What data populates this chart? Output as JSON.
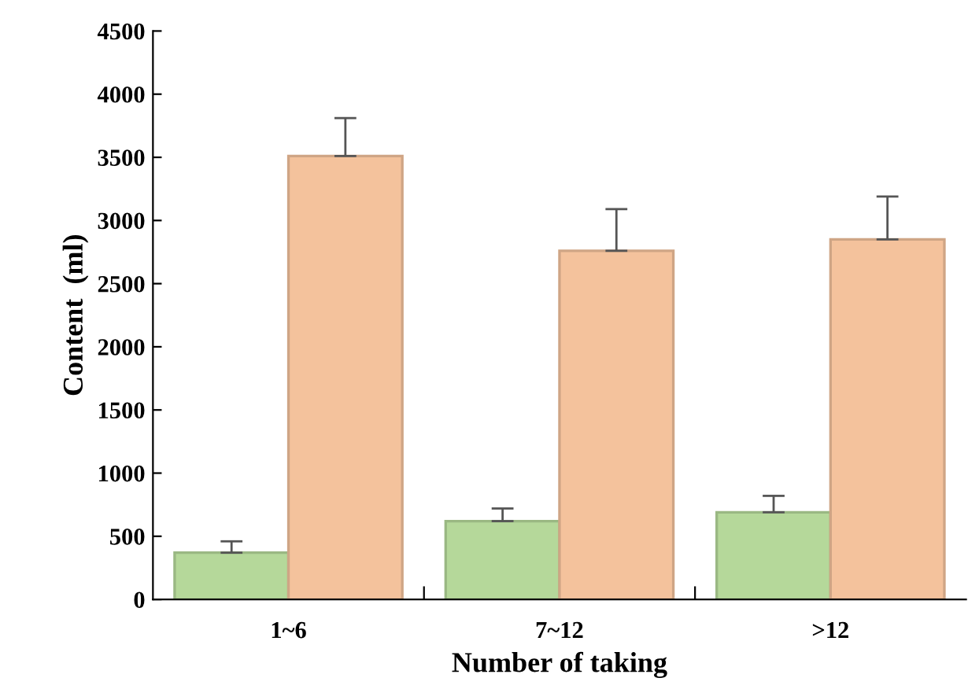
{
  "chart_data": {
    "type": "bar",
    "xlabel": "Number of taking",
    "ylabel": "Content  (ml)",
    "categories": [
      "1~6",
      "7~12",
      ">12"
    ],
    "series": [
      {
        "color": "#b5d89a",
        "values": [
          370,
          620,
          690
        ],
        "errors": [
          [
            370,
            460
          ],
          [
            620,
            720
          ],
          [
            690,
            820
          ]
        ]
      },
      {
        "color": "#f4c29c",
        "values": [
          3510,
          2760,
          2850
        ],
        "errors": [
          [
            3510,
            3810
          ],
          [
            2760,
            3090
          ],
          [
            2850,
            3190
          ]
        ]
      }
    ],
    "ylim": [
      0,
      4500
    ],
    "yticks": [
      0,
      500,
      1000,
      1500,
      2000,
      2500,
      3000,
      3500,
      4000,
      4500
    ],
    "grid": false,
    "legend": false
  }
}
